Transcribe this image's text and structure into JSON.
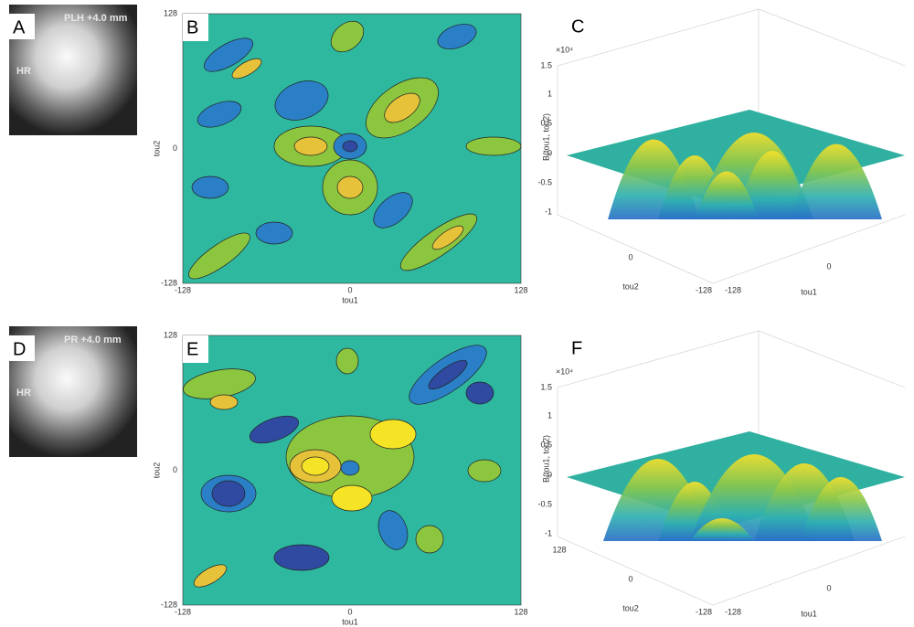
{
  "rows": [
    {
      "image": {
        "letter": "A",
        "title": "PLH +4.0 mm",
        "label": "HR"
      },
      "contour": {
        "letter": "B",
        "x_label": "tou1",
        "y_label": "tou2",
        "x_ticks": [
          "-128",
          "0",
          "128"
        ],
        "y_ticks": [
          "128",
          "0",
          "-128"
        ]
      },
      "surface": {
        "letter": "C",
        "exponent": "×10⁴",
        "z_label": "B(tou1, tou2)",
        "z_ticks": [
          "1.5",
          "1",
          "0.5",
          "0",
          "-0.5",
          "-1"
        ],
        "y_label": "tou2",
        "y_ticks": [
          "0",
          "-128"
        ],
        "x_label": "tou1",
        "x_ticks": [
          "-128",
          "0"
        ]
      }
    },
    {
      "image": {
        "letter": "D",
        "title": "PR +4.0 mm",
        "label": "HR"
      },
      "contour": {
        "letter": "E",
        "x_label": "tou1",
        "y_label": "tou2",
        "x_ticks": [
          "-128",
          "0",
          "128"
        ],
        "y_ticks": [
          "128",
          "0",
          "-128"
        ]
      },
      "surface": {
        "letter": "F",
        "exponent": "×10⁴",
        "z_label": "B(tou1, tou2)",
        "z_ticks": [
          "1.5",
          "1",
          "0.5",
          "0",
          "-0.5",
          "-1"
        ],
        "y_label": "tou2",
        "y_ticks": [
          "128",
          "0",
          "-128"
        ],
        "x_label": "tou1",
        "x_ticks": [
          "-128",
          "0"
        ]
      }
    }
  ]
}
